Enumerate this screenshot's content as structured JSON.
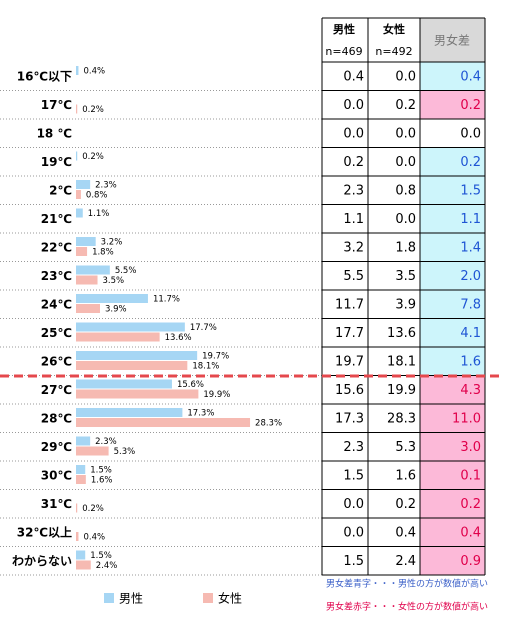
{
  "chart_data": {
    "type": "bar",
    "categories": [
      "16℃以下",
      "17℃",
      "18 ℃",
      "19℃",
      "2℃",
      "21℃",
      "22℃",
      "23℃",
      "24℃",
      "25℃",
      "26℃",
      "27℃",
      "28℃",
      "29℃",
      "30℃",
      "31℃",
      "32℃以上",
      "わからない"
    ],
    "series": [
      {
        "name": "男性",
        "color": "#a6d6f4",
        "values": [
          0.4,
          0.0,
          0.0,
          0.2,
          2.3,
          1.1,
          3.2,
          5.5,
          11.7,
          17.7,
          19.7,
          15.6,
          17.3,
          2.3,
          1.5,
          0.0,
          0.0,
          1.5
        ],
        "value_labels": [
          "0.4%",
          null,
          null,
          "0.2%",
          "2.3%",
          "1.1%",
          "3.2%",
          "5.5%",
          "11.7%",
          "17.7%",
          "19.7%",
          "15.6%",
          "17.3%",
          "2.3%",
          "1.5%",
          null,
          null,
          "1.5%"
        ]
      },
      {
        "name": "女性",
        "color": "#f6bab2",
        "values": [
          0.0,
          0.2,
          0.0,
          0.0,
          0.8,
          0.0,
          1.8,
          3.5,
          3.9,
          13.6,
          18.1,
          19.9,
          28.3,
          5.3,
          1.6,
          0.2,
          0.4,
          2.4
        ],
        "value_labels": [
          null,
          "0.2%",
          null,
          null,
          "0.8%",
          null,
          "1.8%",
          "3.5%",
          "3.9%",
          "13.6%",
          "18.1%",
          "19.9%",
          "28.3%",
          "5.3%",
          "1.6%",
          "0.2%",
          "0.4%",
          "2.4%"
        ]
      }
    ]
  },
  "table": {
    "headers": [
      "男性",
      "女性",
      "男女差"
    ],
    "subheaders": [
      "n=469",
      "n=492"
    ],
    "rows": [
      [
        "0.4",
        "0.0",
        "0.4"
      ],
      [
        "0.0",
        "0.2",
        "0.2"
      ],
      [
        "0.0",
        "0.0",
        "0.0"
      ],
      [
        "0.2",
        "0.0",
        "0.2"
      ],
      [
        "2.3",
        "0.8",
        "1.5"
      ],
      [
        "1.1",
        "0.0",
        "1.1"
      ],
      [
        "3.2",
        "1.8",
        "1.4"
      ],
      [
        "5.5",
        "3.5",
        "2.0"
      ],
      [
        "11.7",
        "3.9",
        "7.8"
      ],
      [
        "17.7",
        "13.6",
        "4.1"
      ],
      [
        "19.7",
        "18.1",
        "1.6"
      ],
      [
        "15.6",
        "19.9",
        "4.3"
      ],
      [
        "17.3",
        "28.3",
        "11.0"
      ],
      [
        "2.3",
        "5.3",
        "3.0"
      ],
      [
        "1.5",
        "1.6",
        "0.1"
      ],
      [
        "0.0",
        "0.2",
        "0.2"
      ],
      [
        "0.0",
        "0.4",
        "0.4"
      ],
      [
        "1.5",
        "2.4",
        "0.9"
      ]
    ],
    "diff_colors": [
      "#1f55d4",
      "#e0004b",
      "#000000",
      "#1f55d4",
      "#1f55d4",
      "#1f55d4",
      "#1f55d4",
      "#1f55d4",
      "#1f55d4",
      "#1f55d4",
      "#1f55d4",
      "#e0004b",
      "#e0004b",
      "#e0004b",
      "#e0004b",
      "#e0004b",
      "#e0004b",
      "#e0004b"
    ],
    "diff_backgrounds": [
      "#cdf5fb",
      "#fcb9d8",
      "#ffffff",
      "#cdf5fb",
      "#cdf5fb",
      "#cdf5fb",
      "#cdf5fb",
      "#cdf5fb",
      "#cdf5fb",
      "#cdf5fb",
      "#cdf5fb",
      "#fcb9d8",
      "#fcb9d8",
      "#fcb9d8",
      "#fcb9d8",
      "#fcb9d8",
      "#fcb9d8",
      "#fcb9d8"
    ]
  },
  "notes": [
    {
      "text": "男女差青字・・・男性の方が数値が高い",
      "color": "#3a5fc8"
    },
    {
      "text": "男女差赤字・・・女性の方が数値が高い",
      "color": "#e0004b"
    }
  ]
}
